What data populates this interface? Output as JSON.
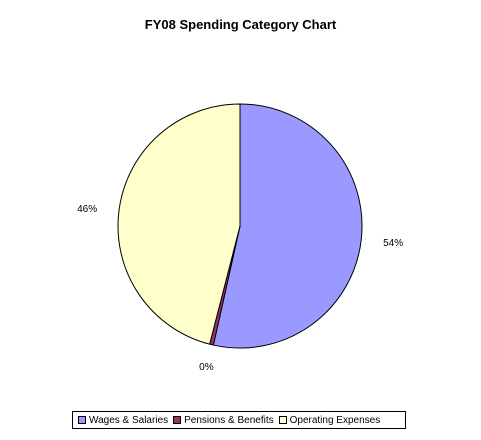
{
  "chart_data": {
    "type": "pie",
    "title": "FY08 Spending Category Chart",
    "categories": [
      "Wages & Salaries",
      "Pensions & Benefits",
      "Operating Expenses"
    ],
    "values": [
      53.5,
      0.5,
      46.0
    ],
    "data_labels": [
      "54%",
      "0%",
      "46%"
    ],
    "colors": [
      "#9999ff",
      "#993366",
      "#ffffcc"
    ],
    "legend_position": "bottom"
  }
}
